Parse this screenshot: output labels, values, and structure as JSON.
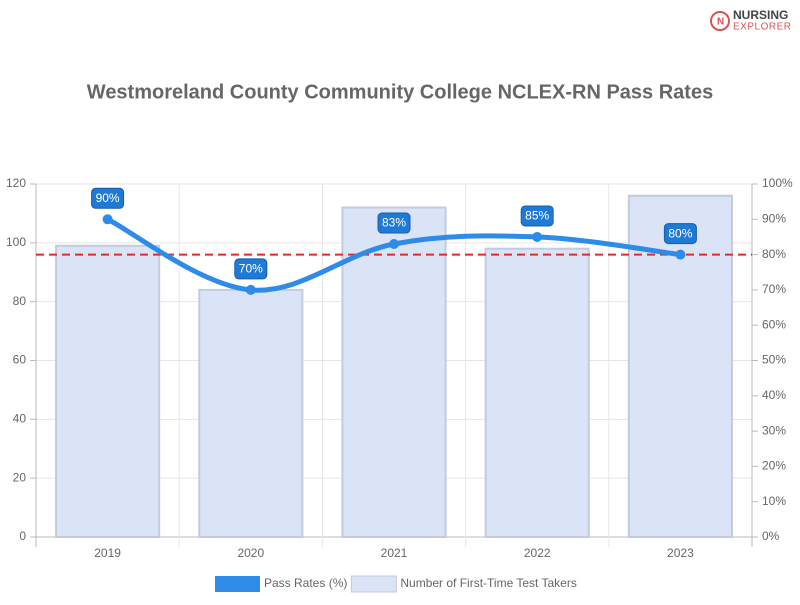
{
  "logo": [
    "NURSING",
    "EXPLORER"
  ],
  "chart_data": {
    "type": "bar",
    "title": "Westmoreland County Community College NCLEX-RN Pass Rates",
    "categories": [
      "2019",
      "2020",
      "2021",
      "2022",
      "2023"
    ],
    "series": [
      {
        "name": "Pass Rates (%)",
        "type": "line",
        "axis": "y2",
        "color": "#2e8be8",
        "values": [
          90,
          70,
          83,
          85,
          80
        ],
        "value_labels": [
          "90%",
          "70%",
          "83%",
          "85%",
          "80%"
        ]
      },
      {
        "name": "Number of First-Time Test Takers",
        "type": "bar",
        "color": "#dbe3f7",
        "values": [
          99,
          84,
          112,
          98,
          116
        ]
      }
    ],
    "ylim": [
      0,
      120
    ],
    "yticks": [
      0,
      20,
      40,
      60,
      80,
      100,
      120
    ],
    "y2lim": [
      0,
      100
    ],
    "y2ticks": [
      {
        "value": 0,
        "label": "0%"
      },
      {
        "value": 10,
        "label": "10%"
      },
      {
        "value": 20,
        "label": "20%"
      },
      {
        "value": 30,
        "label": "30%"
      },
      {
        "value": 40,
        "label": "40%"
      },
      {
        "value": 50,
        "label": "50%"
      },
      {
        "value": 60,
        "label": "60%"
      },
      {
        "value": 70,
        "label": "70%"
      },
      {
        "value": 80,
        "label": "80%"
      },
      {
        "value": 90,
        "label": "90%"
      },
      {
        "value": 100,
        "label": "100%"
      }
    ],
    "reference_line": {
      "value": 80,
      "axis": "y2",
      "color": "#e02b2b"
    },
    "grid": true
  }
}
